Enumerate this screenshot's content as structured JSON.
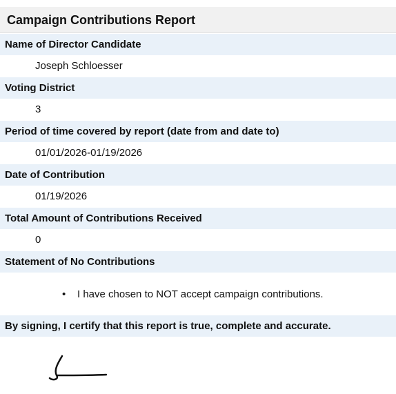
{
  "header": {
    "title": "Campaign Contributions Report"
  },
  "fields": [
    {
      "label": "Name of Director Candidate",
      "value": "Joseph Schloesser"
    },
    {
      "label": "Voting District",
      "value": "3"
    },
    {
      "label": "Period of time covered by report (date from and date to)",
      "value": "01/01/2026-01/19/2026"
    },
    {
      "label": "Date of Contribution",
      "value": "01/19/2026"
    },
    {
      "label": "Total Amount of Contributions Received",
      "value": "0"
    }
  ],
  "statement": {
    "label": "Statement of No Contributions",
    "items": [
      "I have chosen to NOT accept campaign contributions."
    ]
  },
  "certification": "By signing, I certify that this report is true, complete and accurate."
}
